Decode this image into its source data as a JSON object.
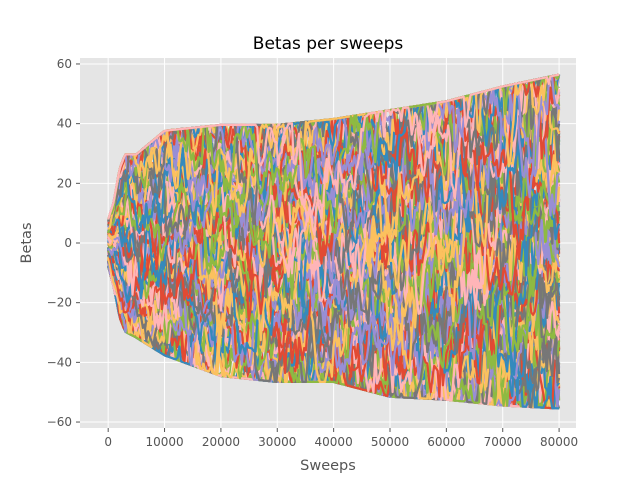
{
  "chart_data": {
    "type": "line",
    "title": "Betas per sweeps",
    "xlabel": "Sweeps",
    "ylabel": "Betas",
    "xlim": [
      -5000,
      83000
    ],
    "ylim": [
      -62,
      62
    ],
    "x_ticks": [
      0,
      10000,
      20000,
      30000,
      40000,
      50000,
      60000,
      70000,
      80000
    ],
    "x_tick_labels": [
      "0",
      "10000",
      "20000",
      "30000",
      "40000",
      "50000",
      "60000",
      "70000",
      "80000"
    ],
    "y_ticks": [
      -60,
      -40,
      -20,
      0,
      20,
      40,
      60
    ],
    "y_tick_labels": [
      "−60",
      "−40",
      "−20",
      "0",
      "20",
      "40",
      "60"
    ],
    "grid": true,
    "style": "ggplot",
    "palette": [
      "#E24A33",
      "#348ABD",
      "#988ED5",
      "#777777",
      "#FBC15E",
      "#8EBA42",
      "#FFB5B8"
    ],
    "x_range": [
      0,
      80000
    ],
    "series_count": 140,
    "series_shape": "random-walk traces starting near 0 at sweep 0, jumping to roughly ±30 by sweep 3000, then spreading between about −55 and 57 by sweep 80000",
    "envelope": {
      "x": [
        0,
        1000,
        2000,
        3000,
        5000,
        10000,
        20000,
        30000,
        40000,
        50000,
        60000,
        70000,
        80000
      ],
      "upper": [
        8,
        14,
        25,
        30,
        30,
        38,
        40,
        40,
        42,
        45,
        48,
        53,
        57
      ],
      "lower": [
        -8,
        -15,
        -25,
        -30,
        -32,
        -38,
        -45,
        -47,
        -47,
        -52,
        -53,
        -55,
        -56
      ]
    }
  }
}
